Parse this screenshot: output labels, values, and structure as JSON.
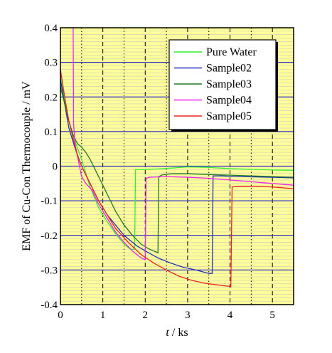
{
  "chart_data": {
    "type": "line",
    "title": "",
    "xlabel_var": "t",
    "xlabel_sep": " / ",
    "xlabel_unit": "ks",
    "ylabel": "EMF of Cu-Con Thermocouple / mV",
    "xlim": [
      0,
      5.5
    ],
    "ylim": [
      -0.4,
      0.4
    ],
    "x_ticks": [
      0,
      1,
      2,
      3,
      4,
      5
    ],
    "x_tick_labels": [
      "0",
      "1",
      "2",
      "3",
      "4",
      "5"
    ],
    "y_ticks": [
      -0.4,
      -0.3,
      -0.2,
      -0.1,
      0,
      0.1,
      0.2,
      0.3,
      0.4
    ],
    "y_tick_labels": [
      "-0.4",
      "-0.3",
      "-0.2",
      "-0.1",
      "0",
      "0.1",
      "0.2",
      "0.3",
      "0.4"
    ],
    "grid": true,
    "background": "#ffff99",
    "legend_position": "top-right",
    "series": [
      {
        "name": "Pure Water",
        "color": "#33ee33",
        "x": [
          0,
          0.1,
          0.2,
          0.35,
          0.5,
          0.7,
          0.9,
          1.1,
          1.3,
          1.5,
          1.65,
          1.75,
          1.77,
          1.9,
          2.3,
          2.7,
          3.0,
          3.5,
          4.0,
          4.5,
          5.0,
          5.5
        ],
        "y": [
          0.26,
          0.19,
          0.13,
          0.07,
          0.02,
          -0.06,
          -0.12,
          -0.16,
          -0.195,
          -0.225,
          -0.24,
          -0.24,
          -0.01,
          -0.01,
          -0.008,
          -0.005,
          -0.002,
          -0.004,
          -0.007,
          -0.009,
          -0.011,
          -0.012
        ]
      },
      {
        "name": "Sample02",
        "color": "#2233bb",
        "x": [
          0,
          0.1,
          0.2,
          0.35,
          0.5,
          0.7,
          0.9,
          1.1,
          1.3,
          1.5,
          1.8,
          2.0,
          2.3,
          2.6,
          2.9,
          3.2,
          3.5,
          3.58,
          3.6,
          3.8,
          4.2,
          4.6,
          5.0,
          5.5
        ],
        "y": [
          0.25,
          0.18,
          0.11,
          0.05,
          0.0,
          -0.05,
          -0.1,
          -0.14,
          -0.17,
          -0.2,
          -0.23,
          -0.245,
          -0.265,
          -0.28,
          -0.292,
          -0.3,
          -0.31,
          -0.31,
          -0.028,
          -0.028,
          -0.03,
          -0.031,
          -0.032,
          -0.034
        ]
      },
      {
        "name": "Sample03",
        "color": "#227722",
        "x": [
          0,
          0.1,
          0.2,
          0.3,
          0.4,
          0.5,
          0.6,
          0.7,
          0.9,
          1.1,
          1.3,
          1.5,
          1.7,
          1.9,
          2.1,
          2.3,
          2.32,
          2.4,
          2.6,
          3.0,
          3.5,
          4.0,
          4.5,
          5.0,
          5.5
        ],
        "y": [
          0.23,
          0.18,
          0.13,
          0.09,
          0.065,
          0.055,
          0.04,
          0.02,
          -0.03,
          -0.08,
          -0.13,
          -0.17,
          -0.2,
          -0.225,
          -0.24,
          -0.25,
          -0.03,
          -0.025,
          -0.022,
          -0.022,
          -0.024,
          -0.026,
          -0.028,
          -0.03,
          -0.032
        ]
      },
      {
        "name": "Sample04",
        "color": "#ee22ee",
        "x": [
          0.3,
          0.31,
          0.35,
          0.4,
          0.45,
          0.5,
          0.6,
          0.75,
          0.9,
          1.1,
          1.3,
          1.5,
          1.7,
          1.9,
          2.0,
          2.02,
          2.1,
          2.5,
          3.0,
          3.5,
          4.0,
          4.5,
          5.0,
          5.5
        ],
        "y": [
          0.4,
          0.12,
          0.06,
          0.03,
          0.0,
          -0.03,
          -0.05,
          -0.07,
          -0.11,
          -0.15,
          -0.19,
          -0.22,
          -0.245,
          -0.265,
          -0.27,
          -0.035,
          -0.032,
          -0.03,
          -0.032,
          -0.035,
          -0.04,
          -0.045,
          -0.05,
          -0.055
        ]
      },
      {
        "name": "Sample05",
        "color": "#ee2222",
        "x": [
          0,
          0.1,
          0.2,
          0.3,
          0.4,
          0.5,
          0.7,
          0.9,
          1.1,
          1.3,
          1.6,
          1.9,
          2.2,
          2.5,
          2.8,
          3.1,
          3.4,
          3.7,
          4.02,
          4.05,
          4.2,
          4.6,
          5.0,
          5.5
        ],
        "y": [
          0.28,
          0.2,
          0.13,
          0.08,
          0.03,
          0.0,
          -0.05,
          -0.1,
          -0.14,
          -0.18,
          -0.22,
          -0.255,
          -0.28,
          -0.3,
          -0.318,
          -0.33,
          -0.338,
          -0.343,
          -0.348,
          -0.06,
          -0.058,
          -0.058,
          -0.06,
          -0.065
        ]
      }
    ]
  }
}
